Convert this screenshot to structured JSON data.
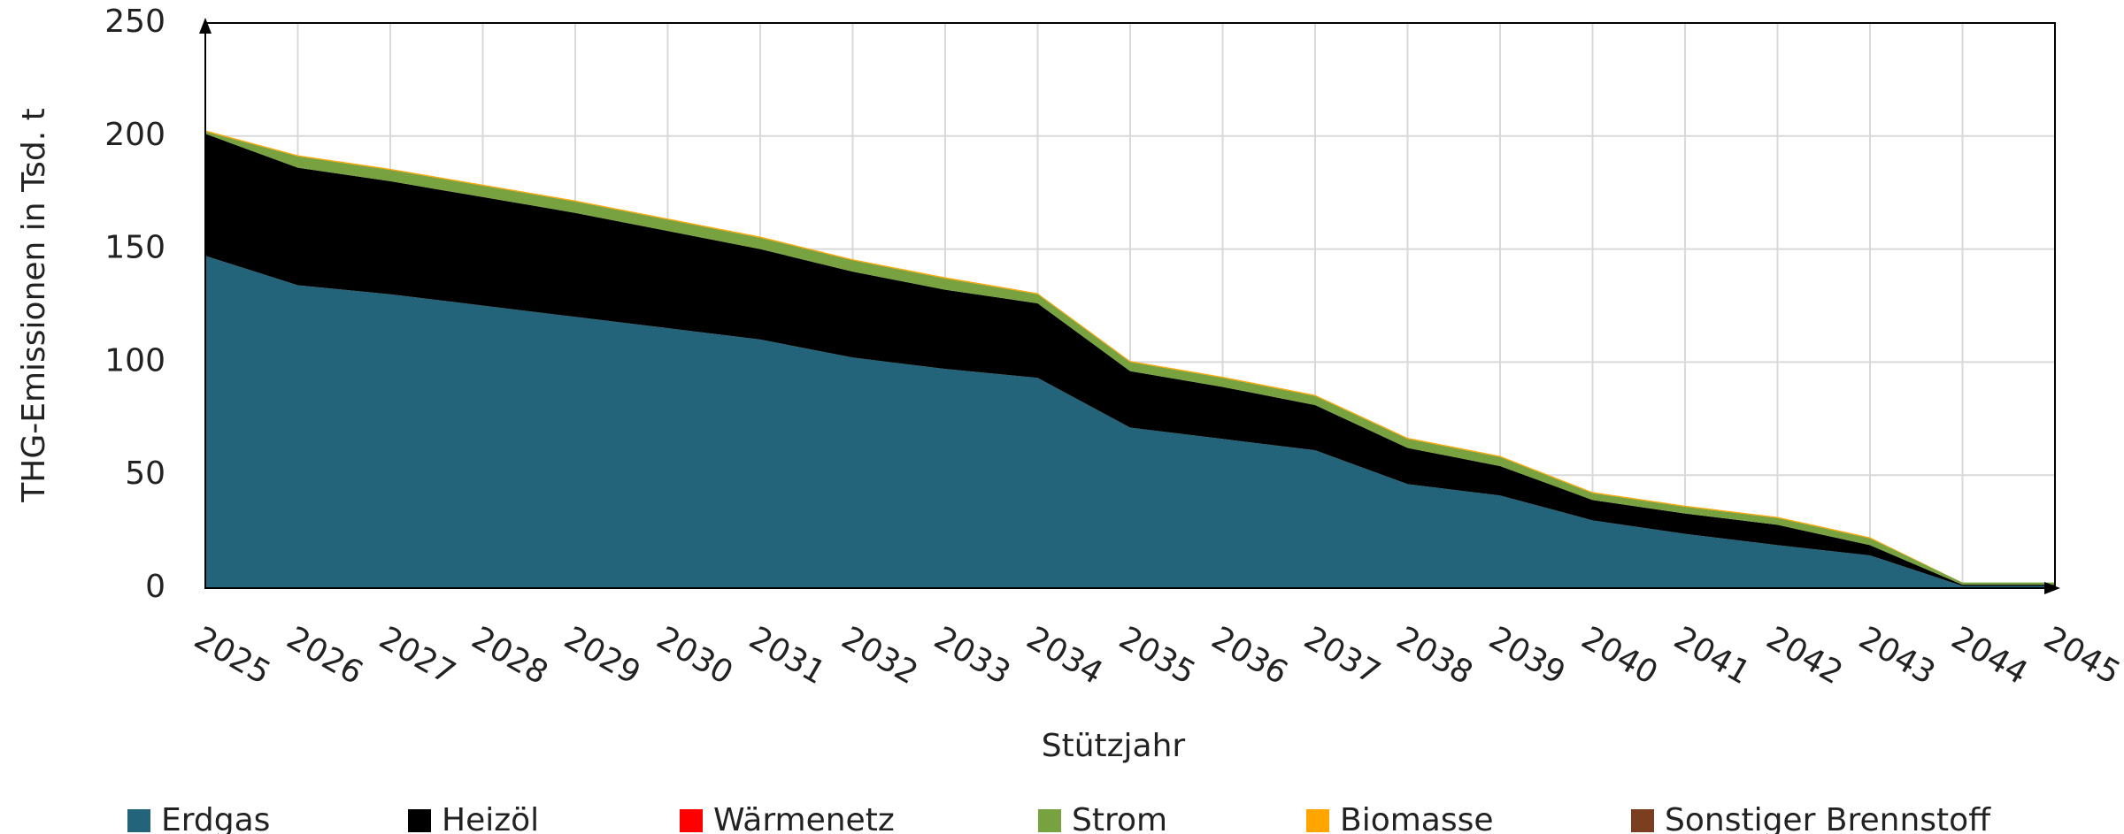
{
  "chart_data": {
    "type": "stacked-area",
    "y_label": "THG-Emissionen in Tsd. t",
    "x_label": "Stützjahr",
    "categories": [
      "2025",
      "2026",
      "2027",
      "2028",
      "2029",
      "2030",
      "2031",
      "2032",
      "2033",
      "2034",
      "2035",
      "2036",
      "2037",
      "2038",
      "2039",
      "2040",
      "2041",
      "2042",
      "2043",
      "2044",
      "2045"
    ],
    "series": [
      {
        "name": "Erdgas",
        "color": "#23647a",
        "values": [
          147,
          134,
          130,
          125,
          120,
          115,
          110,
          102,
          97,
          93,
          71,
          66,
          61,
          46,
          41,
          30,
          24,
          19,
          14.5,
          1,
          1
        ]
      },
      {
        "name": "Heizöl",
        "color": "#000000",
        "values": [
          54,
          52,
          50,
          48,
          46,
          43,
          40,
          38,
          35,
          33,
          25,
          23,
          20,
          16,
          13,
          9,
          9,
          9,
          4.5,
          0.5,
          0.5
        ]
      },
      {
        "name": "Wärmenetz",
        "color": "#ff0000",
        "values": [
          0,
          0,
          0,
          0,
          0,
          0,
          0,
          0,
          0,
          0,
          0,
          0,
          0,
          0,
          0,
          0,
          0,
          0,
          0,
          0,
          0
        ]
      },
      {
        "name": "Strom",
        "color": "#77a23f",
        "values": [
          1,
          5,
          5,
          5,
          5,
          5,
          5,
          5,
          5,
          4,
          4,
          4,
          4,
          4,
          4,
          3,
          3,
          3,
          3,
          1,
          1
        ]
      },
      {
        "name": "Biomasse",
        "color": "#ffa500",
        "values": [
          0.5,
          0.5,
          0.5,
          0.5,
          0.5,
          0.5,
          0.5,
          0.5,
          0.5,
          0.5,
          0.5,
          0.5,
          0.5,
          0.5,
          0.5,
          0.5,
          0.5,
          0.5,
          0.5,
          0,
          0
        ]
      },
      {
        "name": "Sonstiger Brennstoff",
        "color": "#7b3f1f",
        "values": [
          0,
          0,
          0,
          0,
          0,
          0,
          0,
          0,
          0,
          0,
          0,
          0,
          0,
          0,
          0,
          0,
          0,
          0,
          0,
          0,
          0
        ]
      }
    ],
    "ylim": [
      0,
      250
    ],
    "yticks": [
      0,
      50,
      100,
      150,
      200,
      250
    ],
    "grid": true
  }
}
